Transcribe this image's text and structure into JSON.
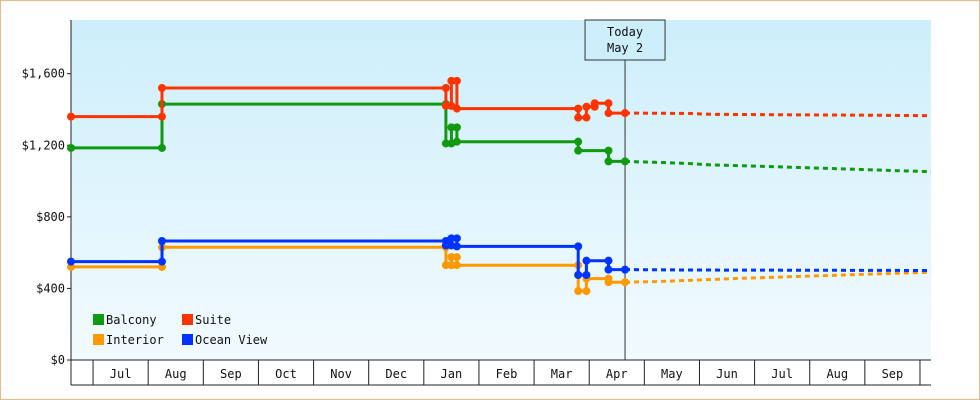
{
  "chart_data": {
    "type": "line",
    "title": "",
    "xlabel": "",
    "ylabel": "",
    "ylim": [
      0,
      1900
    ],
    "yticks": [
      0,
      400,
      800,
      1200,
      1600
    ],
    "ytick_labels": [
      "$0",
      "$400",
      "$800",
      "$1,200",
      "$1,600"
    ],
    "x_range": [
      0,
      15.6
    ],
    "months": [
      "Jul",
      "Aug",
      "Sep",
      "Oct",
      "Nov",
      "Dec",
      "Jan",
      "Feb",
      "Mar",
      "Apr",
      "May",
      "Jun",
      "Jul",
      "Aug",
      "Sep"
    ],
    "grid": false,
    "legend_position": "bottom-left",
    "today": {
      "x": 10.05,
      "line1": "Today",
      "line2": "May 2"
    },
    "colors": {
      "balcony": "#119911",
      "suite": "#ff3300",
      "interior": "#ff9900",
      "ocean": "#0033ff",
      "background_top": "#cdeefb",
      "background_bottom": "#f2fbfe"
    },
    "series": [
      {
        "name": "Balcony",
        "color": "#119911",
        "points": [
          [
            0,
            1185
          ],
          [
            1.65,
            1185
          ],
          [
            1.65,
            1430
          ],
          [
            6.8,
            1430
          ],
          [
            6.8,
            1210
          ],
          [
            6.9,
            1210
          ],
          [
            6.9,
            1300
          ],
          [
            7.0,
            1300
          ],
          [
            7.0,
            1220
          ],
          [
            9.2,
            1220
          ],
          [
            9.2,
            1170
          ],
          [
            9.75,
            1170
          ],
          [
            9.75,
            1110
          ],
          [
            10.05,
            1110
          ]
        ],
        "forecast": [
          [
            10.05,
            1110
          ],
          [
            10.6,
            1105
          ],
          [
            11.2,
            1098
          ],
          [
            11.6,
            1090
          ],
          [
            12.2,
            1085
          ],
          [
            13.0,
            1078
          ],
          [
            14.0,
            1068
          ],
          [
            15.0,
            1058
          ],
          [
            15.6,
            1052
          ]
        ]
      },
      {
        "name": "Suite",
        "color": "#ff3300",
        "points": [
          [
            0,
            1360
          ],
          [
            1.65,
            1360
          ],
          [
            1.65,
            1520
          ],
          [
            6.8,
            1520
          ],
          [
            6.8,
            1420
          ],
          [
            6.9,
            1420
          ],
          [
            6.9,
            1560
          ],
          [
            7.0,
            1560
          ],
          [
            7.0,
            1405
          ],
          [
            9.2,
            1405
          ],
          [
            9.2,
            1355
          ],
          [
            9.35,
            1355
          ],
          [
            9.35,
            1415
          ],
          [
            9.5,
            1415
          ],
          [
            9.5,
            1435
          ],
          [
            9.75,
            1435
          ],
          [
            9.75,
            1380
          ],
          [
            10.05,
            1380
          ]
        ],
        "forecast": [
          [
            10.05,
            1380
          ],
          [
            11.2,
            1378
          ],
          [
            11.6,
            1373
          ],
          [
            13.0,
            1370
          ],
          [
            14.5,
            1368
          ],
          [
            15.6,
            1365
          ]
        ]
      },
      {
        "name": "Interior",
        "color": "#ff9900",
        "points": [
          [
            0,
            520
          ],
          [
            1.65,
            520
          ],
          [
            1.65,
            630
          ],
          [
            6.8,
            630
          ],
          [
            6.8,
            530
          ],
          [
            6.9,
            530
          ],
          [
            6.9,
            575
          ],
          [
            7.0,
            575
          ],
          [
            7.0,
            530
          ],
          [
            9.2,
            530
          ],
          [
            9.2,
            385
          ],
          [
            9.35,
            385
          ],
          [
            9.35,
            455
          ],
          [
            9.75,
            455
          ],
          [
            9.75,
            435
          ],
          [
            10.05,
            435
          ]
        ],
        "forecast": [
          [
            10.05,
            435
          ],
          [
            10.6,
            438
          ],
          [
            11.2,
            445
          ],
          [
            12.0,
            455
          ],
          [
            13.0,
            465
          ],
          [
            14.0,
            475
          ],
          [
            15.0,
            485
          ],
          [
            15.6,
            490
          ]
        ]
      },
      {
        "name": "Ocean View",
        "color": "#0033ff",
        "points": [
          [
            0,
            550
          ],
          [
            1.65,
            550
          ],
          [
            1.65,
            665
          ],
          [
            6.8,
            665
          ],
          [
            6.8,
            640
          ],
          [
            6.9,
            640
          ],
          [
            6.9,
            680
          ],
          [
            7.0,
            680
          ],
          [
            7.0,
            635
          ],
          [
            9.2,
            635
          ],
          [
            9.2,
            475
          ],
          [
            9.35,
            475
          ],
          [
            9.35,
            555
          ],
          [
            9.75,
            555
          ],
          [
            9.75,
            505
          ],
          [
            10.05,
            505
          ]
        ],
        "forecast": [
          [
            10.05,
            505
          ],
          [
            11.2,
            503
          ],
          [
            13.0,
            502
          ],
          [
            15.6,
            500
          ]
        ]
      }
    ],
    "legend": [
      {
        "name": "Balcony",
        "color": "#119911"
      },
      {
        "name": "Suite",
        "color": "#ff3300"
      },
      {
        "name": "Interior",
        "color": "#ff9900"
      },
      {
        "name": "Ocean View",
        "color": "#0033ff"
      }
    ]
  }
}
